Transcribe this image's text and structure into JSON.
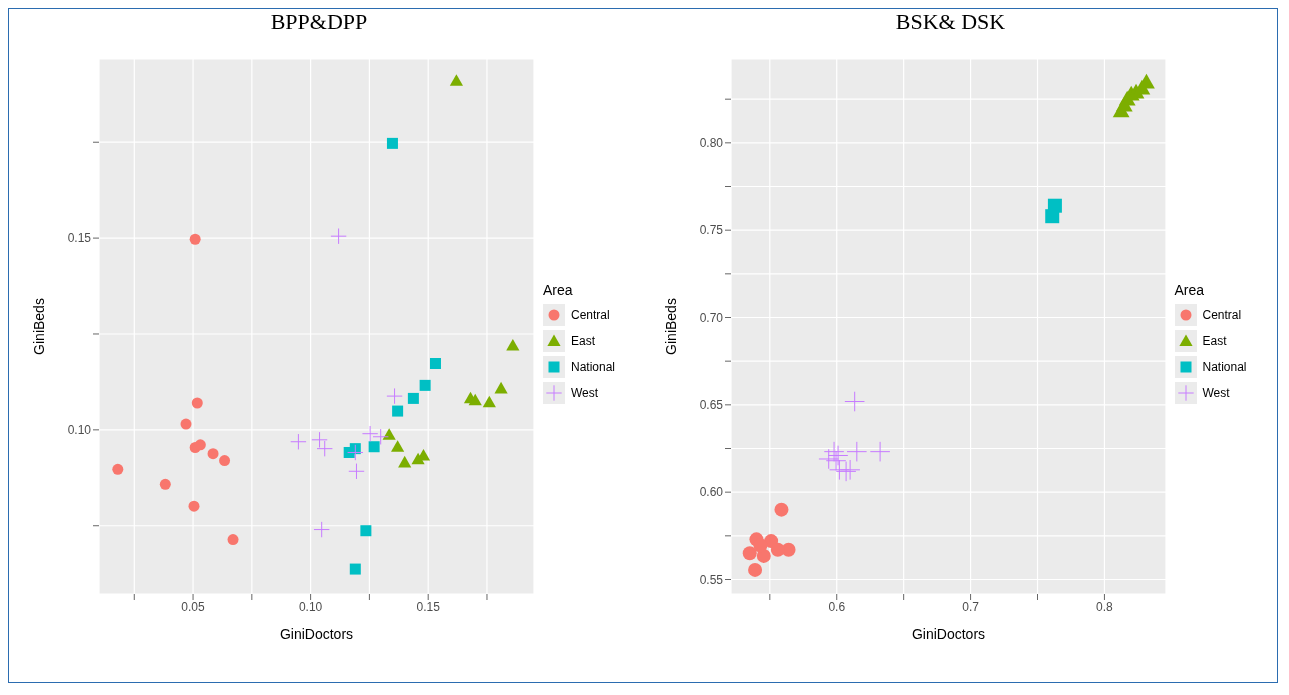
{
  "chart_data": [
    {
      "type": "scatter",
      "title": "BPP&DPP",
      "xlabel": "GiniDoctors",
      "ylabel": "GiniBeds",
      "legend_title": "Area",
      "legend": "right",
      "grid": true,
      "xlim": [
        0.01,
        0.195
      ],
      "ylim": [
        0.0572,
        0.1967
      ],
      "xticks": [
        {
          "value": 0.025,
          "label": null
        },
        0.05,
        {
          "value": 0.075,
          "label": null
        },
        {
          "value": 0.1,
          "label": "0.10"
        },
        {
          "value": 0.125,
          "label": null
        },
        0.15,
        {
          "value": 0.175,
          "label": null
        }
      ],
      "yticks": [
        {
          "value": 0.075,
          "label": null
        },
        {
          "value": 0.1,
          "label": "0.10"
        },
        {
          "value": 0.125,
          "label": null
        },
        0.15,
        {
          "value": 0.175,
          "label": null
        }
      ],
      "series": [
        {
          "name": "Central",
          "color": "#f8766d",
          "marker": "circle",
          "x": [
            0.018,
            0.0382,
            0.047,
            0.0509,
            0.0518,
            0.0509,
            0.0531,
            0.0585,
            0.0634,
            0.0504,
            0.067
          ],
          "values": [
            0.0897,
            0.0858,
            0.1015,
            0.1497,
            0.107,
            0.0954,
            0.0961,
            0.0938,
            0.092,
            0.0801,
            0.0714
          ]
        },
        {
          "name": "East",
          "color": "#7cae00",
          "marker": "triangle",
          "x": [
            0.162,
            0.186,
            0.181,
            0.168,
            0.17,
            0.176,
            0.1334,
            0.137,
            0.14,
            0.1457,
            0.148
          ],
          "values": [
            0.191,
            0.122,
            0.1108,
            0.1082,
            0.1077,
            0.1072,
            0.0987,
            0.0956,
            0.0915,
            0.0923,
            0.0933
          ]
        },
        {
          "name": "National",
          "color": "#00bfc4",
          "marker": "square",
          "x": [
            0.1348,
            0.1531,
            0.1487,
            0.1437,
            0.137,
            0.127,
            0.119,
            0.1164,
            0.1235,
            0.119
          ],
          "values": [
            0.1747,
            0.1173,
            0.1116,
            0.1082,
            0.1049,
            0.0956,
            0.0951,
            0.0941,
            0.0737,
            0.0637
          ]
        },
        {
          "name": "West",
          "color": "#c77cff",
          "marker": "cross",
          "x": [
            0.1119,
            0.1357,
            0.0948,
            0.1038,
            0.106,
            0.1253,
            0.1298,
            0.119,
            0.1195,
            0.1047
          ],
          "values": [
            0.1505,
            0.1088,
            0.0969,
            0.0974,
            0.0951,
            0.099,
            0.0982,
            0.0941,
            0.0892,
            0.074
          ]
        }
      ]
    },
    {
      "type": "scatter",
      "title": "BSK& DSK",
      "xlabel": "GiniDoctors",
      "ylabel": "GiniBeds",
      "legend_title": "Area",
      "legend": "right",
      "grid": true,
      "xlim": [
        0.521,
        0.846
      ],
      "ylim": [
        0.5417,
        0.848
      ],
      "xticks": [
        {
          "value": 0.55,
          "label": null
        },
        0.6,
        {
          "value": 0.65,
          "label": null
        },
        0.7,
        {
          "value": 0.75,
          "label": null
        },
        0.8
      ],
      "yticks": [
        0.55,
        {
          "value": 0.575,
          "label": null
        },
        {
          "value": 0.6,
          "label": "0.60"
        },
        {
          "value": 0.625,
          "label": null
        },
        0.65,
        {
          "value": 0.675,
          "label": null
        },
        {
          "value": 0.7,
          "label": "0.70"
        },
        {
          "value": 0.725,
          "label": null
        },
        0.75,
        {
          "value": 0.775,
          "label": null
        },
        {
          "value": 0.8,
          "label": "0.80"
        },
        {
          "value": 0.825,
          "label": null
        }
      ],
      "series": [
        {
          "name": "Central",
          "color": "#f8766d",
          "marker": "circle",
          "x": [
            0.5587,
            0.54,
            0.551,
            0.535,
            0.5455,
            0.539,
            0.564,
            0.543,
            0.556
          ],
          "values": [
            0.59,
            0.573,
            0.572,
            0.565,
            0.5635,
            0.5555,
            0.567,
            0.5695,
            0.567
          ]
        },
        {
          "name": "East",
          "color": "#7cae00",
          "marker": "triangle",
          "x": [
            0.8125,
            0.8148,
            0.817,
            0.82,
            0.8236,
            0.828,
            0.8314
          ],
          "values": [
            0.8182,
            0.8216,
            0.825,
            0.8279,
            0.829,
            0.8313,
            0.8347
          ]
        },
        {
          "name": "National",
          "color": "#00bfc4",
          "marker": "square",
          "x": [
            0.761,
            0.763
          ],
          "values": [
            0.758,
            0.764
          ]
        },
        {
          "name": "West",
          "color": "#c77cff",
          "marker": "cross",
          "x": [
            0.6134,
            0.598,
            0.594,
            0.615,
            0.6324,
            0.601,
            0.602,
            0.607,
            0.61,
            0.5995
          ],
          "values": [
            0.6519,
            0.6232,
            0.619,
            0.6232,
            0.6232,
            0.621,
            0.6128,
            0.6119,
            0.6128,
            0.618
          ]
        }
      ]
    }
  ]
}
